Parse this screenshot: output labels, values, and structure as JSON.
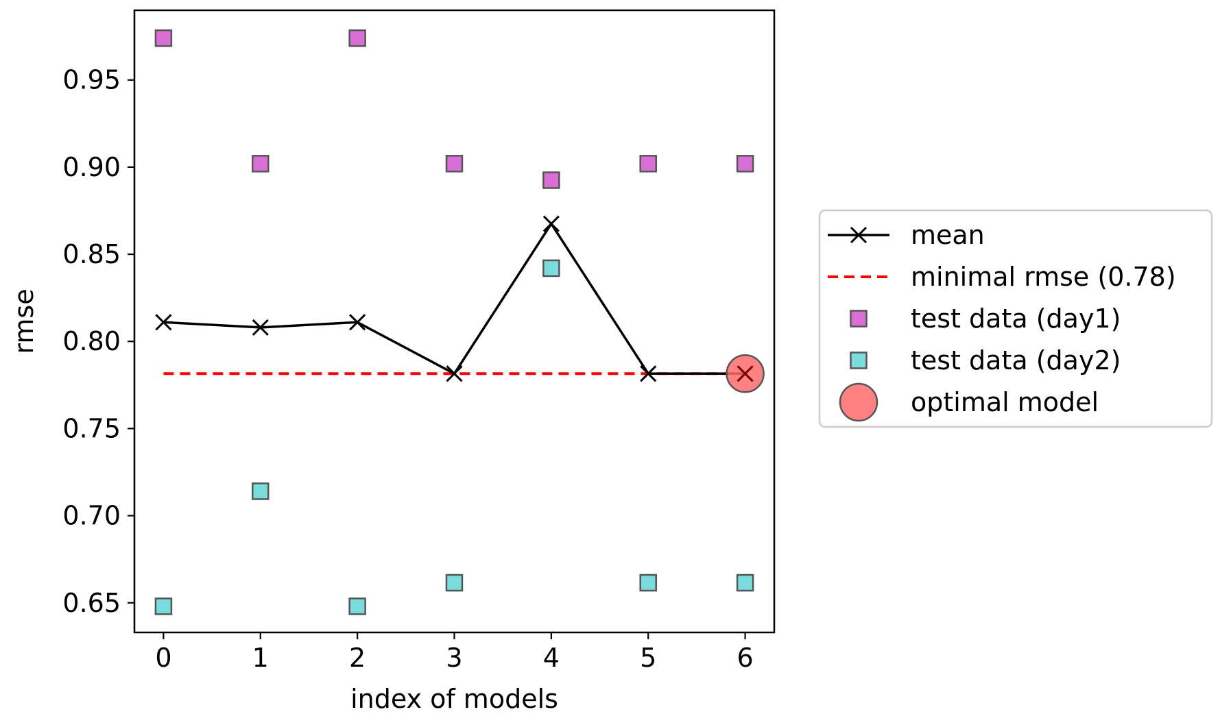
{
  "chart_data": {
    "type": "line",
    "xlabel": "index of models",
    "ylabel": "rmse",
    "x": [
      0,
      1,
      2,
      3,
      4,
      5,
      6
    ],
    "xticks": [
      "0",
      "1",
      "2",
      "3",
      "4",
      "5",
      "6"
    ],
    "yticks": [
      "0.65",
      "0.70",
      "0.75",
      "0.80",
      "0.85",
      "0.90",
      "0.95"
    ],
    "xlim": [
      -0.3,
      6.3
    ],
    "ylim": [
      0.633,
      0.99
    ],
    "series": [
      {
        "name": "mean",
        "kind": "line",
        "marker": "x",
        "color": "#000000",
        "values": [
          0.811,
          0.808,
          0.811,
          0.7815,
          0.8675,
          0.7815,
          0.7815
        ]
      },
      {
        "name": "minimal rmse (0.78)",
        "kind": "hline",
        "color": "#ff0000",
        "value": 0.7815,
        "xrange": [
          0,
          6
        ]
      },
      {
        "name": "test data (day1)",
        "kind": "scatter",
        "marker": "square",
        "color": "#da70d6",
        "values": [
          0.974,
          0.902,
          0.974,
          0.902,
          0.8925,
          0.902,
          0.902
        ]
      },
      {
        "name": "test data (day2)",
        "kind": "scatter",
        "marker": "square",
        "color": "#7adcdc",
        "values": [
          0.648,
          0.714,
          0.648,
          0.6615,
          0.842,
          0.6615,
          0.6615
        ]
      },
      {
        "name": "optimal model",
        "kind": "scatter",
        "marker": "circle",
        "color": "#ff6b6b",
        "x": [
          6
        ],
        "values": [
          0.7815
        ]
      }
    ],
    "legend": {
      "placement": "outside-right",
      "entries": [
        "mean",
        "minimal rmse (0.78)",
        "test data (day1)",
        "test data (day2)",
        "optimal model"
      ]
    },
    "grid": false
  }
}
